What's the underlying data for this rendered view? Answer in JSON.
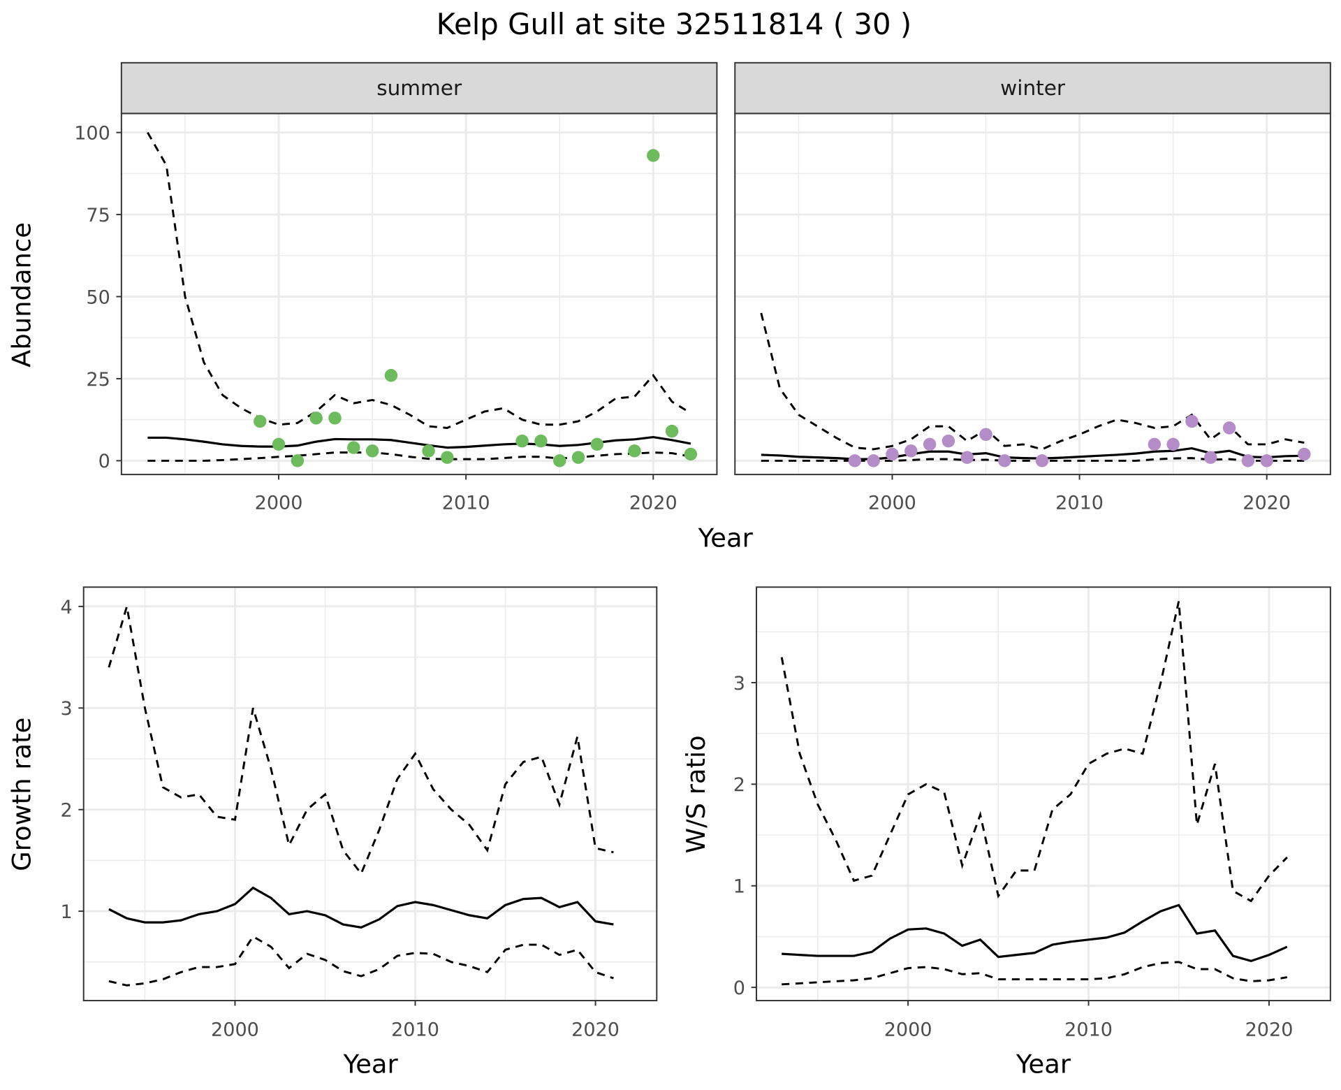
{
  "title": "Kelp Gull at site 32511814 ( 30 )",
  "colors": {
    "summer": "#6dbb5c",
    "winter": "#b38cc8",
    "line": "#000000"
  },
  "chart_data": [
    {
      "type": "line+scatter",
      "ylabel": "Abundance",
      "xlabel": "Year",
      "xlim": [
        1991.6,
        2023.4
      ],
      "ylim": [
        -4.2,
        105.8
      ],
      "xticks": [
        2000,
        2010,
        2020
      ],
      "yticks": [
        0,
        25,
        50,
        75,
        100
      ],
      "grid": true,
      "facets": [
        {
          "label": "summer",
          "x": [
            1993,
            1994,
            1995,
            1996,
            1997,
            1998,
            1999,
            2000,
            2001,
            2002,
            2003,
            2004,
            2005,
            2006,
            2007,
            2008,
            2009,
            2010,
            2011,
            2012,
            2013,
            2014,
            2015,
            2016,
            2017,
            2018,
            2019,
            2020,
            2021,
            2022
          ],
          "mean": [
            7,
            7,
            6.5,
            5.8,
            5,
            4.5,
            4.3,
            4.3,
            4.6,
            5.8,
            6.6,
            6.5,
            6.5,
            6.3,
            5.5,
            4.7,
            4,
            4.2,
            4.6,
            5,
            5.2,
            5,
            4.5,
            4.8,
            5.5,
            6.2,
            6.5,
            7.2,
            6.3,
            5.2
          ],
          "upper": [
            100,
            90,
            50,
            30,
            20,
            16,
            13,
            11,
            11.5,
            15,
            20,
            17.5,
            18.5,
            17,
            14,
            10.5,
            10,
            12.5,
            15,
            16,
            12.5,
            11,
            11,
            12,
            15,
            19,
            19.5,
            26,
            18,
            14.5
          ],
          "lower": [
            0,
            0,
            0,
            0,
            0.2,
            0.5,
            0.8,
            1.2,
            1.5,
            2,
            2.5,
            2.5,
            2.5,
            2,
            1.2,
            0.6,
            0.5,
            0.5,
            0.5,
            0.8,
            1.2,
            1.2,
            0.7,
            1,
            1.5,
            2,
            2.2,
            2.5,
            2.3,
            1.3
          ],
          "points": {
            "x": [
              1999,
              2000,
              2001,
              2002,
              2003,
              2004,
              2005,
              2006,
              2008,
              2009,
              2013,
              2014,
              2015,
              2016,
              2017,
              2019,
              2020,
              2021,
              2022
            ],
            "y": [
              12,
              5,
              0,
              13,
              13,
              4,
              3,
              26,
              3,
              1,
              6,
              6,
              0,
              1,
              5,
              3,
              93,
              9,
              2
            ]
          }
        },
        {
          "label": "winter",
          "x": [
            1993,
            1994,
            1995,
            1996,
            1997,
            1998,
            1999,
            2000,
            2001,
            2002,
            2003,
            2004,
            2005,
            2006,
            2007,
            2008,
            2009,
            2010,
            2011,
            2012,
            2013,
            2014,
            2015,
            2016,
            2017,
            2018,
            2019,
            2020,
            2021,
            2022
          ],
          "mean": [
            1.8,
            1.6,
            1.2,
            1,
            0.8,
            0.5,
            0.5,
            1,
            2,
            2.8,
            2.8,
            1.9,
            2.3,
            1,
            0.8,
            0.7,
            0.9,
            1.2,
            1.5,
            1.8,
            2.2,
            2.8,
            3,
            3.8,
            2.3,
            3,
            1.2,
            1,
            1.4,
            1.5
          ],
          "upper": [
            45,
            22,
            14,
            10.5,
            7,
            4,
            3.5,
            4.5,
            6.5,
            10.5,
            10.5,
            6,
            9.5,
            4.5,
            5,
            3.5,
            6,
            8,
            10.5,
            12.5,
            11.5,
            10,
            10.5,
            14,
            6.5,
            10.5,
            5,
            5,
            6.5,
            5.5
          ],
          "lower": [
            0,
            0,
            0,
            0,
            0,
            0,
            0,
            0,
            0.2,
            0.5,
            0.5,
            0.2,
            0.3,
            0,
            0,
            0,
            0,
            0,
            0,
            0,
            0,
            0.4,
            0.7,
            0.8,
            0.3,
            0.5,
            0,
            0,
            0,
            0
          ],
          "points": {
            "x": [
              1998,
              1999,
              2000,
              2001,
              2002,
              2003,
              2004,
              2005,
              2006,
              2008,
              2014,
              2015,
              2016,
              2017,
              2018,
              2019,
              2020,
              2022
            ],
            "y": [
              0,
              0,
              2,
              3,
              5,
              6,
              1,
              8,
              0,
              0,
              5,
              5,
              12,
              1,
              10,
              0,
              0,
              2
            ]
          }
        }
      ]
    },
    {
      "type": "line",
      "ylabel": "Growth rate",
      "xlabel": "Year",
      "xlim": [
        1991.6,
        2023.4
      ],
      "ylim": [
        0.12,
        4.19
      ],
      "xticks": [
        2000,
        2010,
        2020
      ],
      "yticks": [
        1,
        2,
        3,
        4
      ],
      "grid": true,
      "x": [
        1993,
        1994,
        1995,
        1996,
        1997,
        1998,
        1999,
        2000,
        2001,
        2002,
        2003,
        2004,
        2005,
        2006,
        2007,
        2008,
        2009,
        2010,
        2011,
        2012,
        2013,
        2014,
        2015,
        2016,
        2017,
        2018,
        2019,
        2020,
        2021
      ],
      "mean": [
        1.02,
        0.93,
        0.89,
        0.89,
        0.91,
        0.97,
        1.0,
        1.07,
        1.23,
        1.13,
        0.97,
        1.0,
        0.96,
        0.87,
        0.84,
        0.92,
        1.05,
        1.09,
        1.06,
        1.01,
        0.96,
        0.93,
        1.06,
        1.12,
        1.13,
        1.04,
        1.09,
        0.9,
        0.87
      ],
      "upper": [
        3.4,
        4.0,
        3.0,
        2.22,
        2.12,
        2.15,
        1.93,
        1.9,
        3.0,
        2.4,
        1.65,
        2.0,
        2.15,
        1.6,
        1.37,
        1.8,
        2.3,
        2.55,
        2.2,
        2.0,
        1.85,
        1.6,
        2.25,
        2.47,
        2.52,
        2.05,
        2.72,
        1.62,
        1.58
      ],
      "lower": [
        0.31,
        0.27,
        0.29,
        0.33,
        0.4,
        0.45,
        0.45,
        0.48,
        0.75,
        0.65,
        0.44,
        0.58,
        0.52,
        0.41,
        0.36,
        0.43,
        0.56,
        0.59,
        0.58,
        0.5,
        0.46,
        0.4,
        0.62,
        0.67,
        0.67,
        0.57,
        0.62,
        0.4,
        0.34
      ]
    },
    {
      "type": "line",
      "ylabel": "W/S ratio",
      "xlabel": "Year",
      "xlim": [
        1991.6,
        2023.4
      ],
      "ylim": [
        -0.13,
        3.94
      ],
      "xticks": [
        2000,
        2010,
        2020
      ],
      "yticks": [
        0,
        1,
        2,
        3
      ],
      "grid": true,
      "x": [
        1993,
        1994,
        1995,
        1996,
        1997,
        1998,
        1999,
        2000,
        2001,
        2002,
        2003,
        2004,
        2005,
        2006,
        2007,
        2008,
        2009,
        2010,
        2011,
        2012,
        2013,
        2014,
        2015,
        2016,
        2017,
        2018,
        2019,
        2020,
        2021
      ],
      "mean": [
        0.33,
        0.32,
        0.31,
        0.31,
        0.31,
        0.35,
        0.48,
        0.57,
        0.58,
        0.53,
        0.41,
        0.47,
        0.3,
        0.32,
        0.34,
        0.42,
        0.45,
        0.47,
        0.49,
        0.54,
        0.65,
        0.75,
        0.81,
        0.53,
        0.56,
        0.31,
        0.26,
        0.32,
        0.4
      ],
      "upper": [
        3.25,
        2.3,
        1.8,
        1.45,
        1.05,
        1.1,
        1.5,
        1.9,
        2.0,
        1.92,
        1.2,
        1.7,
        0.9,
        1.15,
        1.15,
        1.75,
        1.9,
        2.2,
        2.3,
        2.35,
        2.3,
        3.0,
        3.8,
        1.6,
        2.2,
        0.95,
        0.85,
        1.1,
        1.28
      ],
      "lower": [
        0.03,
        0.04,
        0.05,
        0.06,
        0.07,
        0.09,
        0.14,
        0.19,
        0.2,
        0.18,
        0.13,
        0.14,
        0.08,
        0.08,
        0.08,
        0.08,
        0.08,
        0.08,
        0.09,
        0.13,
        0.2,
        0.24,
        0.25,
        0.18,
        0.18,
        0.09,
        0.06,
        0.07,
        0.1
      ]
    }
  ]
}
